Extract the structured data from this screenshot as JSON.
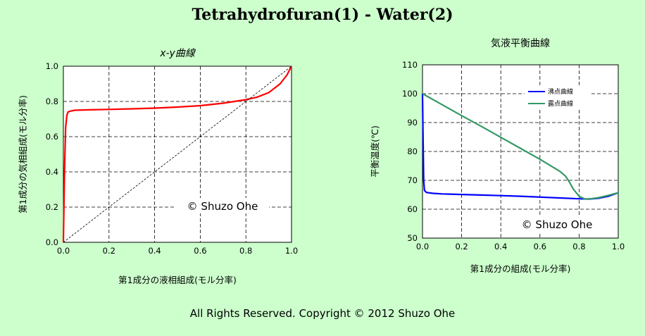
{
  "page": {
    "title": "Tetrahydrofuran(1) - Water(2)",
    "copyright": "All Rights Reserved. Copyright © 2012 Shuzo Ohe"
  },
  "chart_data": [
    {
      "type": "line",
      "title": "x-y曲線",
      "xlabel": "第1成分の液相組成(モル分率)",
      "ylabel": "第1成分の気相組成(モル分率)",
      "xlim": [
        0,
        1
      ],
      "ylim": [
        0,
        1
      ],
      "xticks": [
        "0.0",
        "0.2",
        "0.4",
        "0.6",
        "0.8",
        "1.0"
      ],
      "yticks": [
        "0.0",
        "0.2",
        "0.4",
        "0.6",
        "0.8",
        "1.0"
      ],
      "grid": true,
      "watermark": "© Shuzo Ohe",
      "series": [
        {
          "color": "#ff0000",
          "x": [
            0,
            0.005,
            0.01,
            0.015,
            0.02,
            0.03,
            0.05,
            0.1,
            0.2,
            0.3,
            0.4,
            0.5,
            0.6,
            0.7,
            0.8,
            0.85,
            0.9,
            0.95,
            0.98,
            1.0
          ],
          "y": [
            0,
            0.4,
            0.65,
            0.72,
            0.74,
            0.745,
            0.75,
            0.752,
            0.755,
            0.758,
            0.762,
            0.768,
            0.776,
            0.79,
            0.81,
            0.825,
            0.85,
            0.9,
            0.95,
            1.0
          ]
        },
        {
          "color": "#000000",
          "dashed": true,
          "x": [
            0,
            1
          ],
          "y": [
            0,
            1
          ]
        }
      ]
    },
    {
      "type": "line",
      "title": "気液平衡曲線",
      "xlabel": "第1成分の組成(モル分率)",
      "ylabel": "平衡温度(℃)",
      "xlim": [
        0,
        1
      ],
      "ylim": [
        50,
        110
      ],
      "xticks": [
        "0.0",
        "0.2",
        "0.4",
        "0.6",
        "0.8",
        "1.0"
      ],
      "yticks": [
        "50",
        "60",
        "70",
        "80",
        "90",
        "100",
        "110"
      ],
      "grid": true,
      "legend_position": "top-right",
      "watermark": "© Shuzo Ohe",
      "series": [
        {
          "name": "沸点曲線",
          "color": "#0000ff",
          "x": [
            0,
            0.003,
            0.006,
            0.01,
            0.02,
            0.05,
            0.1,
            0.2,
            0.3,
            0.4,
            0.5,
            0.6,
            0.7,
            0.8,
            0.85,
            0.9,
            0.95,
            1.0
          ],
          "y": [
            100,
            85,
            70,
            66.5,
            65.8,
            65.5,
            65.3,
            65.1,
            64.9,
            64.7,
            64.5,
            64.2,
            63.9,
            63.6,
            63.5,
            63.8,
            64.5,
            65.7
          ]
        },
        {
          "name": "露点曲線",
          "color": "#339966",
          "x": [
            0,
            0.1,
            0.2,
            0.3,
            0.4,
            0.5,
            0.6,
            0.7,
            0.73,
            0.75,
            0.77,
            0.8,
            0.83,
            0.86,
            0.9,
            0.95,
            1.0
          ],
          "y": [
            100,
            96.2,
            92.4,
            88.7,
            84.9,
            81.1,
            77.3,
            73.2,
            71.5,
            69.5,
            67,
            64.5,
            63.5,
            63.6,
            64,
            64.8,
            65.7
          ]
        }
      ]
    }
  ]
}
